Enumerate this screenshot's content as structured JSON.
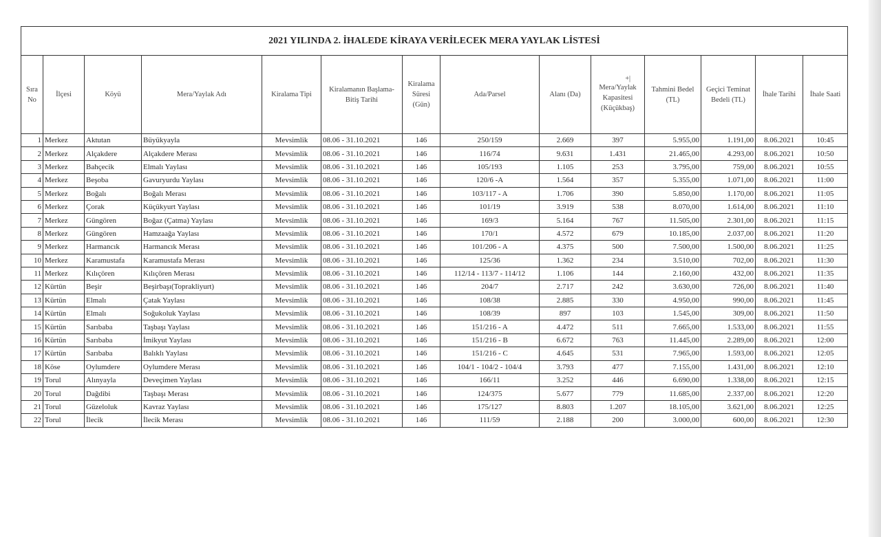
{
  "title": "2021 YILINDA 2. İHALEDE KİRAYA VERİLECEK MERA YAYLAK LİSTESİ",
  "columns": [
    "Sıra No",
    "İlçesi",
    "Köyü",
    "Mera/Yaylak Adı",
    "Kiralama Tipi",
    "Kiralamanın Başlama-Bitiş Tarihi",
    "Kiralama Süresi (Gün)",
    "Ada/Parsel",
    "Alanı (Da)",
    "Mera/Yaylak Kapasitesi (Küçükbaş)",
    "Tahmini Bedel (TL)",
    "Geçici Teminat Bedeli (TL)",
    "İhale Tarihi",
    "İhale Saati"
  ],
  "header_mark": "+|",
  "rows": [
    [
      "1",
      "Merkez",
      "Aktutan",
      "Büyükyayla",
      "Mevsimlik",
      "08.06 - 31.10.2021",
      "146",
      "250/159",
      "2.669",
      "397",
      "5.955,00",
      "1.191,00",
      "8.06.2021",
      "10:45"
    ],
    [
      "2",
      "Merkez",
      "Alçakdere",
      "Alçakdere Merası",
      "Mevsimlik",
      "08.06 - 31.10.2021",
      "146",
      "116/74",
      "9.631",
      "1.431",
      "21.465,00",
      "4.293,00",
      "8.06.2021",
      "10:50"
    ],
    [
      "3",
      "Merkez",
      "Bahçecik",
      "Elmalı Yaylası",
      "Mevsimlik",
      "08.06 - 31.10.2021",
      "146",
      "105/193",
      "1.105",
      "253",
      "3.795,00",
      "759,00",
      "8.06.2021",
      "10:55"
    ],
    [
      "4",
      "Merkez",
      "Beşoba",
      "Gavuryurdu Yaylası",
      "Mevsimlik",
      "08.06 - 31.10.2021",
      "146",
      "120/6 -A",
      "1.564",
      "357",
      "5.355,00",
      "1.071,00",
      "8.06.2021",
      "11:00"
    ],
    [
      "5",
      "Merkez",
      "Boğalı",
      "Boğalı Merası",
      "Mevsimlik",
      "08.06 - 31.10.2021",
      "146",
      "103/117 - A",
      "1.706",
      "390",
      "5.850,00",
      "1.170,00",
      "8.06.2021",
      "11:05"
    ],
    [
      "6",
      "Merkez",
      "Çorak",
      "Küçükyurt Yaylası",
      "Mevsimlik",
      "08.06 - 31.10.2021",
      "146",
      "101/19",
      "3.919",
      "538",
      "8.070,00",
      "1.614,00",
      "8.06.2021",
      "11:10"
    ],
    [
      "7",
      "Merkez",
      "Güngören",
      "Boğaz (Çatma) Yaylası",
      "Mevsimlik",
      "08.06 - 31.10.2021",
      "146",
      "169/3",
      "5.164",
      "767",
      "11.505,00",
      "2.301,00",
      "8.06.2021",
      "11:15"
    ],
    [
      "8",
      "Merkez",
      "Güngören",
      "Hamzaağa Yaylası",
      "Mevsimlik",
      "08.06 - 31.10.2021",
      "146",
      "170/1",
      "4.572",
      "679",
      "10.185,00",
      "2.037,00",
      "8.06.2021",
      "11:20"
    ],
    [
      "9",
      "Merkez",
      "Harmancık",
      "Harmancık Merası",
      "Mevsimlik",
      "08.06 - 31.10.2021",
      "146",
      "101/206 - A",
      "4.375",
      "500",
      "7.500,00",
      "1.500,00",
      "8.06.2021",
      "11:25"
    ],
    [
      "10",
      "Merkez",
      "Karamustafa",
      "Karamustafa Merası",
      "Mevsimlik",
      "08.06 - 31.10.2021",
      "146",
      "125/36",
      "1.362",
      "234",
      "3.510,00",
      "702,00",
      "8.06.2021",
      "11:30"
    ],
    [
      "11",
      "Merkez",
      "Kılıçören",
      "Kılıçören Merası",
      "Mevsimlik",
      "08.06 - 31.10.2021",
      "146",
      "112/14 - 113/7 - 114/12",
      "1.106",
      "144",
      "2.160,00",
      "432,00",
      "8.06.2021",
      "11:35"
    ],
    [
      "12",
      "Kürtün",
      "Beşir",
      "Beşirbaşı(Toprakliyurt)",
      "Mevsimlik",
      "08.06 - 31.10.2021",
      "146",
      "204/7",
      "2.717",
      "242",
      "3.630,00",
      "726,00",
      "8.06.2021",
      "11:40"
    ],
    [
      "13",
      "Kürtün",
      "Elmalı",
      "Çatak Yaylası",
      "Mevsimlik",
      "08.06 - 31.10.2021",
      "146",
      "108/38",
      "2.885",
      "330",
      "4.950,00",
      "990,00",
      "8.06.2021",
      "11:45"
    ],
    [
      "14",
      "Kürtün",
      "Elmalı",
      "Soğukoluk Yaylası",
      "Mevsimlik",
      "08.06 - 31.10.2021",
      "146",
      "108/39",
      "897",
      "103",
      "1.545,00",
      "309,00",
      "8.06.2021",
      "11:50"
    ],
    [
      "15",
      "Kürtün",
      "Sarıbaba",
      "Taşbaşı Yaylası",
      "Mevsimlik",
      "08.06 - 31.10.2021",
      "146",
      "151/216 - A",
      "4.472",
      "511",
      "7.665,00",
      "1.533,00",
      "8.06.2021",
      "11:55"
    ],
    [
      "16",
      "Kürtün",
      "Sarıbaba",
      "İmikyut Yaylası",
      "Mevsimlik",
      "08.06 - 31.10.2021",
      "146",
      "151/216 - B",
      "6.672",
      "763",
      "11.445,00",
      "2.289,00",
      "8.06.2021",
      "12:00"
    ],
    [
      "17",
      "Kürtün",
      "Sarıbaba",
      "Balıklı Yaylası",
      "Mevsimlik",
      "08.06 - 31.10.2021",
      "146",
      "151/216 - C",
      "4.645",
      "531",
      "7.965,00",
      "1.593,00",
      "8.06.2021",
      "12:05"
    ],
    [
      "18",
      "Köse",
      "Oylumdere",
      "Oylumdere Merası",
      "Mevsimlik",
      "08.06 - 31.10.2021",
      "146",
      "104/1 - 104/2 - 104/4",
      "3.793",
      "477",
      "7.155,00",
      "1.431,00",
      "8.06.2021",
      "12:10"
    ],
    [
      "19",
      "Torul",
      "Alınyayla",
      "Deveçimen Yaylası",
      "Mevsimlik",
      "08.06 - 31.10.2021",
      "146",
      "166/11",
      "3.252",
      "446",
      "6.690,00",
      "1.338,00",
      "8.06.2021",
      "12:15"
    ],
    [
      "20",
      "Torul",
      "Dağdibi",
      "Taşbaşı Merası",
      "Mevsimlik",
      "08.06 - 31.10.2021",
      "146",
      "124/375",
      "5.677",
      "779",
      "11.685,00",
      "2.337,00",
      "8.06.2021",
      "12:20"
    ],
    [
      "21",
      "Torul",
      "Güzeloluk",
      "Kavraz Yaylası",
      "Mevsimlik",
      "08.06 - 31.10.2021",
      "146",
      "175/127",
      "8.803",
      "1.207",
      "18.105,00",
      "3.621,00",
      "8.06.2021",
      "12:25"
    ],
    [
      "22",
      "Torul",
      "İlecik",
      "İlecik Merası",
      "Mevsimlik",
      "08.06 - 31.10.2021",
      "146",
      "111/59",
      "2.188",
      "200",
      "3.000,00",
      "600,00",
      "8.06.2021",
      "12:30"
    ]
  ]
}
